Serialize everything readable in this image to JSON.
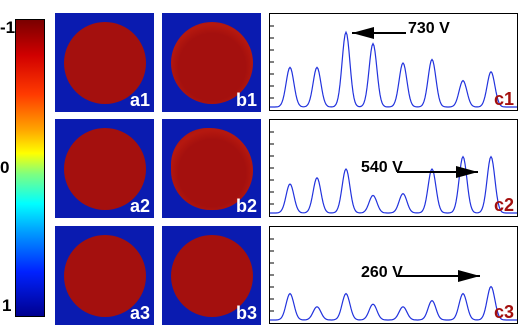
{
  "colorbar": {
    "top_label": "-1",
    "mid_label": "0",
    "bottom_label": "1"
  },
  "panels": {
    "a": [
      "a1",
      "a2",
      "a3"
    ],
    "b": [
      "b1",
      "b2",
      "b3"
    ],
    "c": [
      "c1",
      "c2",
      "c3"
    ]
  },
  "annotations": {
    "c1": "730 V",
    "c2": "540 V",
    "c3": "260 V"
  },
  "colors": {
    "background_blue": "#0a1bb0",
    "disc_red": "#a4100e",
    "curve_blue": "#2233dd"
  },
  "traces": {
    "c1": [
      0.45,
      0.45,
      0.85,
      0.72,
      0.5,
      0.54,
      0.3,
      0.4
    ],
    "c2": [
      0.33,
      0.4,
      0.5,
      0.2,
      0.22,
      0.5,
      0.64,
      0.64
    ],
    "c3": [
      0.3,
      0.15,
      0.3,
      0.18,
      0.15,
      0.22,
      0.3,
      0.38
    ]
  }
}
